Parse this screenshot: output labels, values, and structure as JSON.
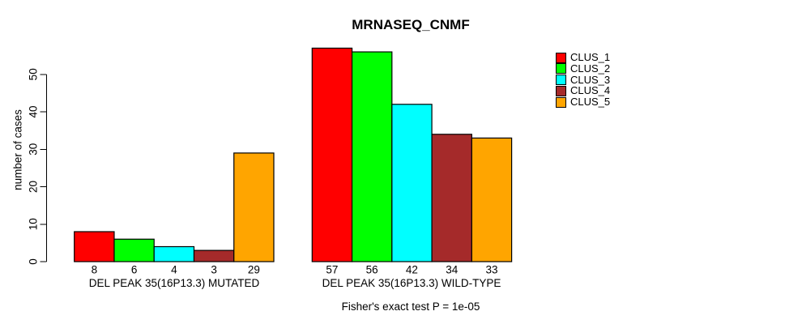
{
  "chart_data": {
    "type": "bar",
    "title": "MRNASEQ_CNMF",
    "ylabel": "number of cases",
    "xlabel": "",
    "subtitle": "Fisher's exact test P = 1e-05",
    "ylim": [
      0,
      57
    ],
    "yticks": [
      0,
      10,
      20,
      30,
      40,
      50
    ],
    "grid": false,
    "legend_position": "right",
    "bar_border_color": "#000000",
    "background_color": "#FFFFFF",
    "categories": [
      "CLUS_1",
      "CLUS_2",
      "CLUS_3",
      "CLUS_4",
      "CLUS_5"
    ],
    "series_colors": [
      "#FF0000",
      "#00FF00",
      "#00FFFF",
      "#A52A2A",
      "#FFA500"
    ],
    "groups": [
      {
        "label": "DEL PEAK 35(16P13.3) MUTATED",
        "values": [
          8,
          6,
          4,
          3,
          29
        ]
      },
      {
        "label": "DEL PEAK 35(16P13.3) WILD-TYPE",
        "values": [
          57,
          56,
          42,
          34,
          33
        ]
      }
    ],
    "legend": [
      {
        "label": "CLUS_1",
        "color": "#FF0000"
      },
      {
        "label": "CLUS_2",
        "color": "#00FF00"
      },
      {
        "label": "CLUS_3",
        "color": "#00FFFF"
      },
      {
        "label": "CLUS_4",
        "color": "#A52A2A"
      },
      {
        "label": "CLUS_5",
        "color": "#FFA500"
      }
    ]
  }
}
